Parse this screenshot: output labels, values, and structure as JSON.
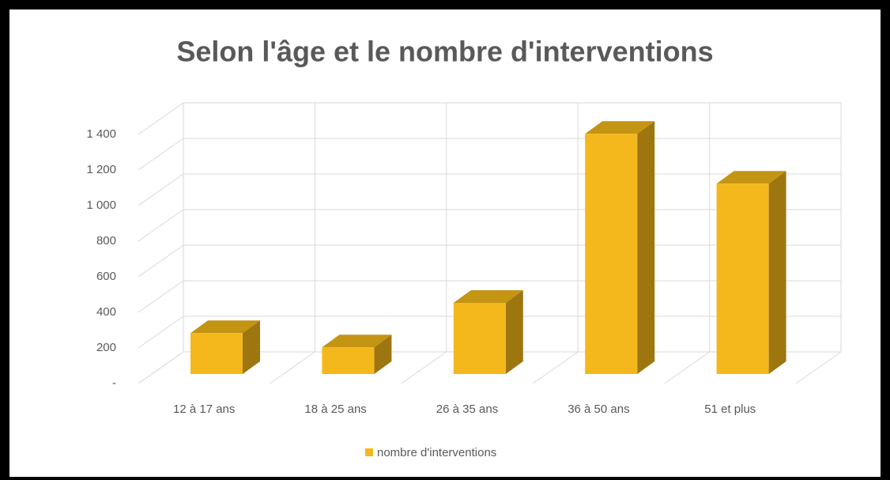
{
  "chart_data": {
    "type": "bar3d",
    "title": "Selon l'âge et le nombre d'interventions",
    "categories": [
      "12 à 17 ans",
      "18 à 25 ans",
      "26 à 35 ans",
      "36 à 50 ans",
      "51 et plus"
    ],
    "series": [
      {
        "name": "nombre d'interventions",
        "color": "#f5b81c",
        "values": [
          230,
          150,
          400,
          1350,
          1070
        ]
      }
    ],
    "ylim": [
      0,
      1400
    ],
    "yticks": [
      {
        "value": 0,
        "label": "-"
      },
      200,
      400,
      600,
      800,
      {
        "value": 1000,
        "label": "1 000"
      },
      {
        "value": 1200,
        "label": "1 200"
      },
      {
        "value": 1400,
        "label": "1 400"
      }
    ],
    "grid": true,
    "legend": "bottom"
  }
}
